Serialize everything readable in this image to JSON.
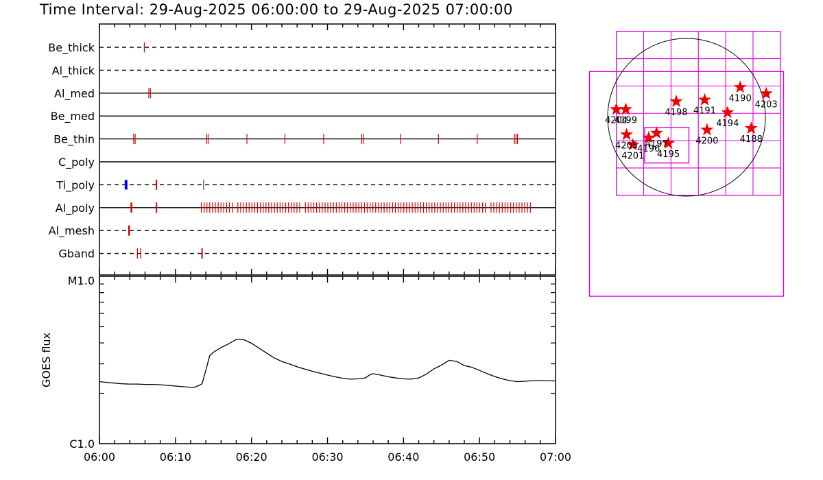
{
  "title": "Time Interval: 29-Aug-2025 06:00:00 to 29-Aug-2025 07:00:00",
  "colors": {
    "event": "#dd0000",
    "ti_blue": "#0000ee",
    "ti_purple": "#6a2c8c",
    "box": "#dd00dd",
    "star": "#ee0000"
  },
  "chart_data": [
    {
      "type": "timeline",
      "x_range": [
        "06:00",
        "07:00"
      ],
      "rows": [
        {
          "label": "Be_thick",
          "style": "dashed",
          "events": [
            {
              "t": 5.9
            }
          ]
        },
        {
          "label": "Al_thick",
          "style": "dashed",
          "events": []
        },
        {
          "label": "Al_med",
          "style": "solid",
          "events": [
            {
              "t": 6.5
            },
            {
              "t": 6.7
            }
          ]
        },
        {
          "label": "Be_med",
          "style": "solid",
          "events": []
        },
        {
          "label": "Be_thin",
          "style": "solid",
          "events": [
            {
              "t": 4.5
            },
            {
              "t": 4.7
            },
            {
              "t": 14.1
            },
            {
              "t": 14.3
            },
            {
              "t": 19.4
            },
            {
              "t": 24.4
            },
            {
              "t": 29.5
            },
            {
              "t": 34.5
            },
            {
              "t": 34.7
            },
            {
              "t": 39.6
            },
            {
              "t": 44.6
            },
            {
              "t": 49.7
            },
            {
              "t": 54.6
            },
            {
              "t": 54.8
            },
            {
              "t": 55.0
            }
          ]
        },
        {
          "label": "C_poly",
          "style": "solid",
          "events": []
        },
        {
          "label": "Ti_poly",
          "style": "dashed",
          "events": [
            {
              "t": 3.5,
              "color": "blue",
              "width": 4
            },
            {
              "t": 7.5,
              "width": 2
            },
            {
              "t": 13.7,
              "color": "purple"
            }
          ]
        },
        {
          "label": "Al_poly",
          "style": "solid",
          "events": [
            {
              "t": 4.2,
              "width": 2.5
            },
            {
              "t": 7.5,
              "width": 2
            },
            {
              "range": [
                13.4,
                56.9
              ],
              "step": 0.37,
              "gaps": [
                [
                  17.6,
                  17.9
                ],
                [
                  26.6,
                  26.9
                ],
                [
                  51.1,
                  51.4
                ]
              ]
            }
          ]
        },
        {
          "label": "Al_mesh",
          "style": "dashed",
          "events": [
            {
              "t": 3.9,
              "width": 2.5
            }
          ]
        },
        {
          "label": "Gband",
          "style": "dashed",
          "events": [
            {
              "t": 5.0
            },
            {
              "t": 5.4
            },
            {
              "t": 13.5,
              "width": 2
            }
          ]
        }
      ],
      "x_ticks": [
        "06:00",
        "06:10",
        "06:20",
        "06:30",
        "06:40",
        "06:50",
        "07:00"
      ]
    },
    {
      "type": "line",
      "ylabel": "GOES flux",
      "y_scale": "log",
      "ylim": [
        1e-06,
        1e-05
      ],
      "y_tick_labels": [
        "C1.0",
        "M1.0"
      ],
      "x_ticks": [
        "06:00",
        "06:10",
        "06:20",
        "06:30",
        "06:40",
        "06:50",
        "07:00"
      ],
      "series": [
        {
          "x": [
            0,
            1,
            2,
            3,
            4,
            5,
            6,
            7,
            8,
            9,
            10,
            11,
            12,
            12.5,
            13,
            13.5,
            14,
            14.5,
            15,
            16,
            17,
            18,
            19,
            20,
            21,
            22,
            23,
            24,
            25,
            26,
            27,
            28,
            29,
            30,
            31,
            32,
            33,
            34,
            35,
            35.5,
            36,
            37,
            38,
            39,
            40,
            41,
            42,
            43,
            44,
            45,
            46,
            47,
            48,
            49,
            50,
            51,
            52,
            53,
            54,
            55,
            56,
            57,
            58,
            59,
            60
          ],
          "y": [
            2.35e-06,
            2.32e-06,
            2.3e-06,
            2.28e-06,
            2.27e-06,
            2.27e-06,
            2.26e-06,
            2.26e-06,
            2.25e-06,
            2.23e-06,
            2.21e-06,
            2.19e-06,
            2.17e-06,
            2.17e-06,
            2.22e-06,
            2.28e-06,
            2.75e-06,
            3.35e-06,
            3.52e-06,
            3.75e-06,
            3.95e-06,
            4.2e-06,
            4.18e-06,
            3.98e-06,
            3.72e-06,
            3.48e-06,
            3.25e-06,
            3.1e-06,
            2.99e-06,
            2.88e-06,
            2.79e-06,
            2.71e-06,
            2.64e-06,
            2.57e-06,
            2.51e-06,
            2.46e-06,
            2.43e-06,
            2.44e-06,
            2.47e-06,
            2.57e-06,
            2.62e-06,
            2.57e-06,
            2.51e-06,
            2.47e-06,
            2.44e-06,
            2.43e-06,
            2.47e-06,
            2.6e-06,
            2.8e-06,
            2.95e-06,
            3.15e-06,
            3.1e-06,
            2.93e-06,
            2.86e-06,
            2.74e-06,
            2.62e-06,
            2.52e-06,
            2.44e-06,
            2.38e-06,
            2.35e-06,
            2.36e-06,
            2.38e-06,
            2.38e-06,
            2.38e-06,
            2.37e-06
          ]
        }
      ]
    },
    {
      "type": "scatter",
      "name": "solar disk map",
      "x_range": [
        -1.0,
        1.0
      ],
      "y_range": [
        -1.0,
        1.0
      ],
      "points": [
        {
          "label": "4204",
          "x": -0.89,
          "y": 0.1
        },
        {
          "label": "4199",
          "x": -0.77,
          "y": 0.1
        },
        {
          "label": "4198",
          "x": -0.13,
          "y": 0.2
        },
        {
          "label": "4191",
          "x": 0.23,
          "y": 0.22
        },
        {
          "label": "4190",
          "x": 0.68,
          "y": 0.38
        },
        {
          "label": "4203",
          "x": 1.01,
          "y": 0.3
        },
        {
          "label": "4194",
          "x": 0.52,
          "y": 0.06
        },
        {
          "label": "4200",
          "x": 0.26,
          "y": -0.16
        },
        {
          "label": "4188",
          "x": 0.82,
          "y": -0.14
        },
        {
          "label": "4205",
          "x": -0.76,
          "y": -0.22
        },
        {
          "label": "4201",
          "x": -0.68,
          "y": -0.35
        },
        {
          "label": "4196",
          "x": -0.48,
          "y": -0.26
        },
        {
          "label": "4197",
          "x": -0.38,
          "y": -0.2
        },
        {
          "label": "4195",
          "x": -0.23,
          "y": -0.33
        }
      ],
      "fov_boxes": [
        {
          "x0": -1.23,
          "y0": -2.27,
          "x1": 1.23,
          "y1": 0.58
        },
        {
          "x0": -0.53,
          "y0": -0.58,
          "x1": 0.03,
          "y1": -0.13
        }
      ],
      "grid_box": {
        "x0": -0.89,
        "y0": -0.99,
        "x1": 1.19,
        "y1": 1.09,
        "cols": 6,
        "rows": 6
      }
    }
  ]
}
